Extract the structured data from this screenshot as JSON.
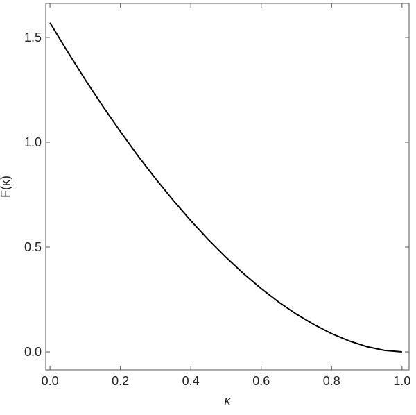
{
  "chart_data": {
    "type": "line",
    "x_label": "κ",
    "y_label": "F(κ)",
    "x": [
      0,
      0.05,
      0.1,
      0.15,
      0.2,
      0.25,
      0.3,
      0.35,
      0.4,
      0.45,
      0.5,
      0.55,
      0.6,
      0.65,
      0.7,
      0.75,
      0.8,
      0.85,
      0.9,
      0.95,
      1
    ],
    "series": [
      {
        "color": "#000000",
        "values": [
          1.57,
          1.432,
          1.299,
          1.172,
          1.051,
          0.935,
          0.826,
          0.723,
          0.626,
          0.535,
          0.451,
          0.373,
          0.302,
          0.237,
          0.18,
          0.13,
          0.087,
          0.052,
          0.025,
          0.007,
          0
        ]
      }
    ],
    "xlim": [
      -0.012,
      1.02
    ],
    "ylim": [
      -0.086,
      1.662
    ],
    "xticks": [
      {
        "value": 0,
        "label": "0.0"
      },
      0.2,
      0.4,
      0.6,
      0.8,
      {
        "value": 1,
        "label": "1.0"
      }
    ],
    "yticks": [
      {
        "value": 0,
        "label": "0.0"
      },
      0.5,
      {
        "value": 1,
        "label": "1.0"
      },
      1.5
    ]
  }
}
